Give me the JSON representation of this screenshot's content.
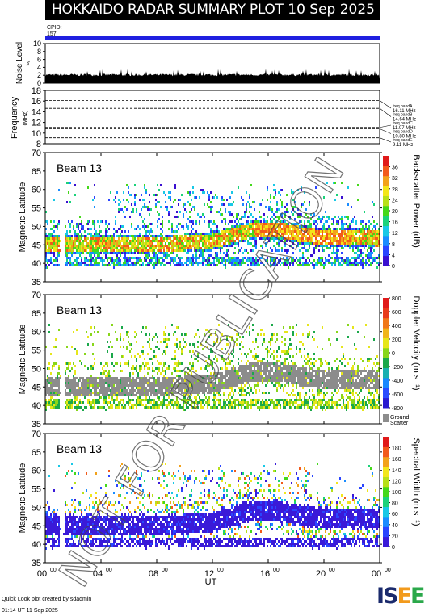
{
  "header": {
    "title": "HOKKAIDO RADAR SUMMARY PLOT",
    "date": "10 Sep 2025",
    "cpid_label": "CPID:",
    "cpid_value": "157"
  },
  "watermark": "NOT FOR PUBLICATION",
  "noise_panel": {
    "ylabel": "Noise Level",
    "ylabel_sub": "log",
    "yticks": [
      "0",
      "2",
      "4",
      "6",
      "8",
      "10"
    ]
  },
  "freq_panel": {
    "ylabel": "Frequency",
    "ylabel_sub": "(MHz)",
    "yticks": [
      "8",
      "10",
      "12",
      "14",
      "16",
      "18"
    ],
    "bands": [
      {
        "name": "freq bandA",
        "value": "16.11 MHz"
      },
      {
        "name": "freq bandB",
        "value": "14.64 MHz"
      },
      {
        "name": "freq bandC",
        "value": "11.07 MHz"
      },
      {
        "name": "freq bandD",
        "value": "10.80 MHz"
      },
      {
        "name": "freq bandE",
        "value": "9.11 MHz"
      }
    ]
  },
  "panels": [
    {
      "beam": "Beam 13",
      "ylabel": "Magnetic Latitude",
      "cbar_label": "Backscatter Power (dB)",
      "cbar_ticks": [
        "0",
        "4",
        "8",
        "12",
        "16",
        "20",
        "24",
        "28",
        "32",
        "36"
      ]
    },
    {
      "beam": "Beam 13",
      "ylabel": "Magnetic Latitude",
      "cbar_label": "Doppler Velocity (m s⁻¹)",
      "cbar_ticks": [
        "-800",
        "-600",
        "-400",
        "-200",
        "0",
        "200",
        "400",
        "600",
        "800"
      ],
      "ground_label": "Ground",
      "ground_label2": "Scatter"
    },
    {
      "beam": "Beam 13",
      "ylabel": "Magnetic Latitude",
      "cbar_label": "Spectral Width (m s⁻¹)",
      "cbar_ticks": [
        "0",
        "20",
        "40",
        "60",
        "80",
        "100",
        "120",
        "140",
        "160",
        "180"
      ]
    }
  ],
  "lat_ticks": [
    "35",
    "40",
    "45",
    "50",
    "55",
    "60",
    "65",
    "70"
  ],
  "time_ticks": [
    {
      "h": "00",
      "m": "00"
    },
    {
      "h": "04",
      "m": "00"
    },
    {
      "h": "08",
      "m": "00"
    },
    {
      "h": "12",
      "m": "00"
    },
    {
      "h": "16",
      "m": "00"
    },
    {
      "h": "20",
      "m": "00"
    },
    {
      "h": "00",
      "m": "00"
    }
  ],
  "xlabel": "UT",
  "footer": {
    "line1": "Quick Look plot created by sdadmin",
    "line2": "01:14 UT 11 Sep 2025"
  },
  "logo": {
    "text": "ISEE"
  },
  "colors": {
    "cpid_bar": "#2020e0",
    "ground": "#8c8c8c"
  },
  "chart_data": [
    {
      "type": "area",
      "x_range": [
        "00:00",
        "24:00"
      ],
      "ylim": [
        0,
        10
      ],
      "ylabel": "Noise Level",
      "note_values_approx_level": 2.2
    },
    {
      "type": "line",
      "ylim": [
        8,
        18
      ],
      "ylabel": "Frequency",
      "series": [
        {
          "name": "freq bandA",
          "value": 16.11
        },
        {
          "name": "freq bandB",
          "value": 14.64
        },
        {
          "name": "freq bandC",
          "value": 11.07
        },
        {
          "name": "freq bandD",
          "value": 10.8
        },
        {
          "name": "freq bandE",
          "value": 9.11
        }
      ]
    },
    {
      "type": "heatmap",
      "title": "Beam 13",
      "ylabel": "Magnetic Latitude",
      "xlabel": "UT",
      "ylim": [
        35,
        70
      ],
      "xlim": [
        "00:00",
        "24:00"
      ],
      "colorbar": {
        "label": "Backscatter Power (dB)",
        "range": [
          0,
          36
        ]
      }
    },
    {
      "type": "heatmap",
      "title": "Beam 13",
      "ylabel": "Magnetic Latitude",
      "xlabel": "UT",
      "ylim": [
        35,
        70
      ],
      "xlim": [
        "00:00",
        "24:00"
      ],
      "colorbar": {
        "label": "Doppler Velocity (m s⁻¹)",
        "range": [
          -800,
          800
        ]
      }
    },
    {
      "type": "heatmap",
      "title": "Beam 13",
      "ylabel": "Magnetic Latitude",
      "xlabel": "UT",
      "ylim": [
        35,
        70
      ],
      "xlim": [
        "00:00",
        "24:00"
      ],
      "colorbar": {
        "label": "Spectral Width (m s⁻¹)",
        "range": [
          0,
          180
        ]
      }
    }
  ]
}
